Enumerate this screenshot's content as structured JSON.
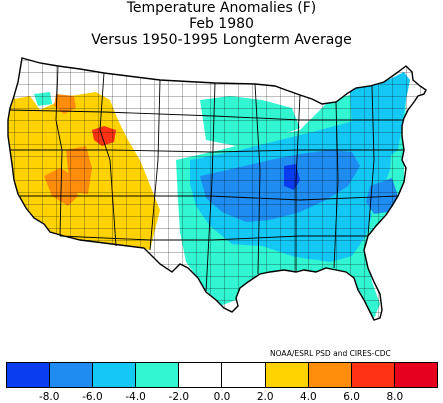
{
  "map": {
    "title": "Temperature Anomalies (F)",
    "subtitle": "Feb 1980",
    "comparison": "Versus 1950-1995 Longterm Average",
    "credit": "NOAA/ESRL PSD and CIRES-CDC",
    "legend": {
      "bins": [
        {
          "range": "< -8.0",
          "color": "#0a3cf0"
        },
        {
          "range": "-8.0 to -6.0",
          "color": "#1e8cf0"
        },
        {
          "range": "-6.0 to -4.0",
          "color": "#14c8f5"
        },
        {
          "range": "-4.0 to -2.0",
          "color": "#32f5d2"
        },
        {
          "range": "-2.0 to 0.0",
          "color": "#ffffff"
        },
        {
          "range": "0.0 to 2.0",
          "color": "#ffffff"
        },
        {
          "range": "2.0 to 4.0",
          "color": "#ffd200"
        },
        {
          "range": "4.0 to 6.0",
          "color": "#ff8c0a"
        },
        {
          "range": "6.0 to 8.0",
          "color": "#ff3214"
        },
        {
          "range": "> 8.0",
          "color": "#e6001e"
        }
      ],
      "tick_labels": [
        "-8.0",
        "-6.0",
        "-4.0",
        "-2.0",
        "0.0",
        "2.0",
        "4.0",
        "6.0",
        "8.0"
      ]
    },
    "regions": [
      {
        "name": "west-coast-warm",
        "bin": "2.0 to 4.0"
      },
      {
        "name": "great-basin-warm",
        "bin": "2.0 to 4.0"
      },
      {
        "name": "nevada-core",
        "bin": "4.0 to 6.0"
      },
      {
        "name": "utah-core",
        "bin": "4.0 to 6.0"
      },
      {
        "name": "idaho-hotspot",
        "bin": "6.0 to 8.0"
      },
      {
        "name": "oregon-patch",
        "bin": "4.0 to 6.0"
      },
      {
        "name": "washington-cool-patch",
        "bin": "-4.0 to -2.0"
      },
      {
        "name": "plains-cool",
        "bin": "-4.0 to -2.0"
      },
      {
        "name": "great-lakes-cool",
        "bin": "-4.0 to -2.0"
      },
      {
        "name": "central-cold",
        "bin": "-6.0 to -4.0"
      },
      {
        "name": "ohio-valley-colder",
        "bin": "-8.0 to -6.0"
      },
      {
        "name": "coldest-core",
        "bin": "< -8.0"
      },
      {
        "name": "northeast-cold",
        "bin": "-6.0 to -4.0"
      },
      {
        "name": "southeast-cold",
        "bin": "-6.0 to -4.0"
      },
      {
        "name": "gulf-coast-cool",
        "bin": "-4.0 to -2.0"
      },
      {
        "name": "florida-cool",
        "bin": "-4.0 to -2.0"
      },
      {
        "name": "carolinas-colder",
        "bin": "-8.0 to -6.0"
      }
    ]
  }
}
